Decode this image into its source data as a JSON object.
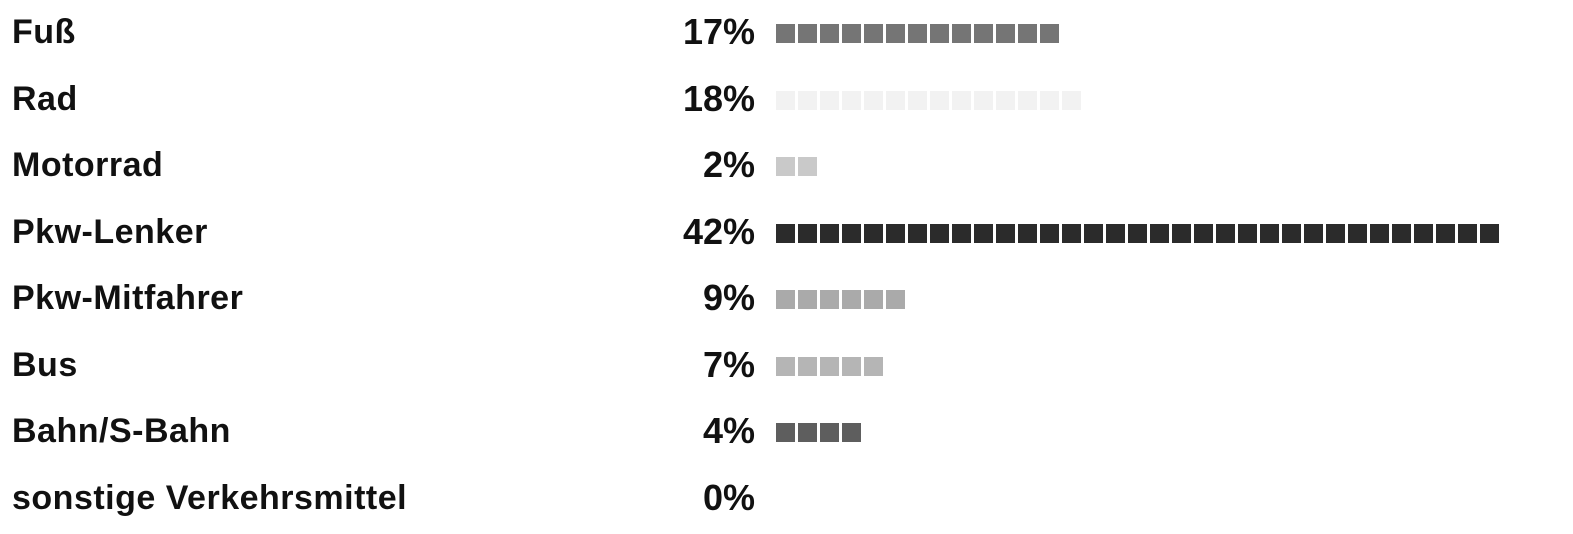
{
  "chart_data": {
    "type": "bar",
    "orientation": "horizontal",
    "style": "pictogram squares",
    "categories": [
      "Fuß",
      "Rad",
      "Motorrad",
      "Pkw-Lenker",
      "Pkw-Mitfahrer",
      "Bus",
      "Bahn/S-Bahn",
      "sonstige Verkehrsmittel"
    ],
    "values": [
      17,
      18,
      2,
      42,
      9,
      7,
      4,
      0
    ],
    "value_labels": [
      "17%",
      "18%",
      "2%",
      "42%",
      "9%",
      "7%",
      "4%",
      "0%"
    ],
    "square_counts": [
      13,
      14,
      2,
      33,
      6,
      5,
      4,
      0
    ],
    "colors": [
      "#757575",
      "#f2f2f2",
      "#c9c9c9",
      "#2b2b2b",
      "#aaaaaa",
      "#b5b5b5",
      "#5e5e5e",
      "#ffffff"
    ],
    "title": "",
    "xlabel": "",
    "ylabel": "",
    "grid": false,
    "legend": "none"
  }
}
